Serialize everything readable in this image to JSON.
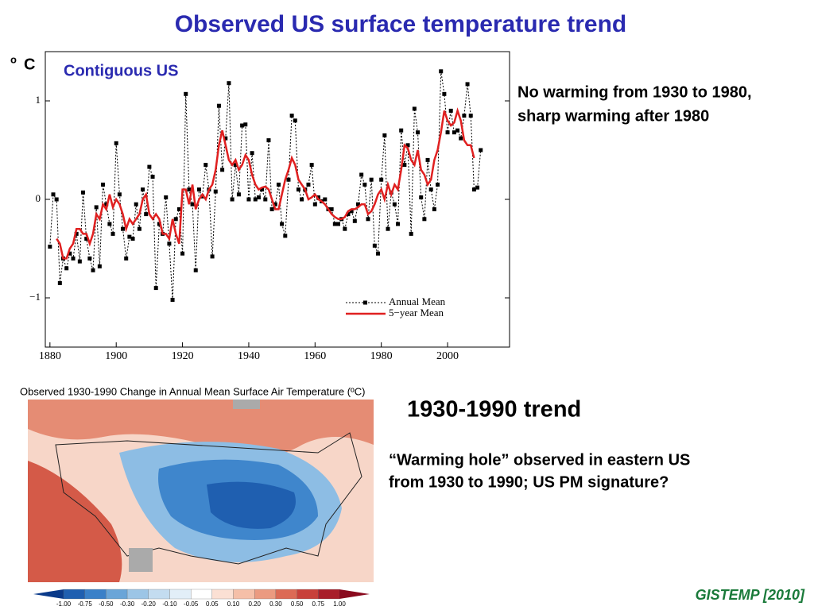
{
  "title": "Observed US surface temperature trend",
  "chart_data": {
    "type": "line",
    "ylabel_sup": "o",
    "ylabel": "C",
    "annotation": "Contiguous US",
    "x": [
      1880,
      1881,
      1882,
      1883,
      1884,
      1885,
      1886,
      1887,
      1888,
      1889,
      1890,
      1891,
      1892,
      1893,
      1894,
      1895,
      1896,
      1897,
      1898,
      1899,
      1900,
      1901,
      1902,
      1903,
      1904,
      1905,
      1906,
      1907,
      1908,
      1909,
      1910,
      1911,
      1912,
      1913,
      1914,
      1915,
      1916,
      1917,
      1918,
      1919,
      1920,
      1921,
      1922,
      1923,
      1924,
      1925,
      1926,
      1927,
      1928,
      1929,
      1930,
      1931,
      1932,
      1933,
      1934,
      1935,
      1936,
      1937,
      1938,
      1939,
      1940,
      1941,
      1942,
      1943,
      1944,
      1945,
      1946,
      1947,
      1948,
      1949,
      1950,
      1951,
      1952,
      1953,
      1954,
      1955,
      1956,
      1957,
      1958,
      1959,
      1960,
      1961,
      1962,
      1963,
      1964,
      1965,
      1966,
      1967,
      1968,
      1969,
      1970,
      1971,
      1972,
      1973,
      1974,
      1975,
      1976,
      1977,
      1978,
      1979,
      1980,
      1981,
      1982,
      1983,
      1984,
      1985,
      1986,
      1987,
      1988,
      1989,
      1990,
      1991,
      1992,
      1993,
      1994,
      1995,
      1996,
      1997,
      1998,
      1999,
      2000,
      2001,
      2002,
      2003,
      2004,
      2005,
      2006,
      2007,
      2008,
      2009,
      2010
    ],
    "series": [
      {
        "name": "Annual Mean",
        "color": "#000000",
        "values": [
          -0.48,
          0.05,
          0.0,
          -0.85,
          -0.6,
          -0.7,
          -0.55,
          -0.6,
          -0.35,
          -0.63,
          0.07,
          -0.4,
          -0.6,
          -0.72,
          -0.08,
          -0.68,
          0.15,
          -0.05,
          -0.25,
          -0.35,
          0.57,
          0.05,
          -0.3,
          -0.6,
          -0.38,
          -0.4,
          -0.05,
          -0.3,
          0.1,
          -0.15,
          0.33,
          0.23,
          -0.9,
          -0.25,
          -0.35,
          0.02,
          -0.45,
          -1.02,
          -0.2,
          -0.1,
          -0.55,
          1.07,
          0.1,
          -0.05,
          -0.72,
          0.1,
          0.03,
          0.35,
          0.1,
          -0.58,
          0.08,
          0.95,
          0.3,
          0.62,
          1.18,
          0.0,
          0.35,
          0.05,
          0.75,
          0.76,
          0.0,
          0.47,
          0.0,
          0.02,
          0.1,
          0.0,
          0.6,
          -0.1,
          -0.05,
          0.15,
          -0.25,
          -0.37,
          0.2,
          0.85,
          0.8,
          0.1,
          0.0,
          0.1,
          0.15,
          0.35,
          -0.05,
          0.02,
          -0.02,
          0.0,
          -0.1,
          -0.1,
          -0.25,
          -0.25,
          -0.2,
          -0.3,
          -0.15,
          -0.12,
          -0.22,
          -0.05,
          0.25,
          0.15,
          -0.2,
          0.2,
          -0.47,
          -0.55,
          0.2,
          0.65,
          -0.3,
          0.07,
          -0.05,
          -0.25,
          0.7,
          0.35,
          0.55,
          -0.35,
          0.92,
          0.68,
          0.02,
          -0.2,
          0.4,
          0.1,
          -0.1,
          0.15,
          1.3,
          1.07,
          0.68,
          0.9,
          0.68,
          0.7,
          0.62,
          0.85,
          1.17,
          0.85,
          0.1,
          0.12,
          0.5
        ]
      },
      {
        "name": "5−year Mean",
        "color": "#e02020",
        "values": [
          null,
          null,
          -0.4,
          -0.45,
          -0.6,
          -0.6,
          -0.5,
          -0.45,
          -0.3,
          -0.3,
          -0.35,
          -0.35,
          -0.45,
          -0.35,
          -0.15,
          -0.2,
          -0.05,
          -0.1,
          0.05,
          -0.08,
          0.0,
          -0.05,
          -0.15,
          -0.3,
          -0.2,
          -0.25,
          -0.2,
          -0.15,
          0.0,
          0.05,
          -0.15,
          -0.2,
          -0.15,
          -0.2,
          -0.35,
          -0.35,
          -0.4,
          -0.2,
          -0.35,
          -0.45,
          0.1,
          0.1,
          -0.05,
          0.15,
          -0.1,
          0.0,
          0.05,
          0.0,
          0.1,
          0.15,
          0.3,
          0.55,
          0.7,
          0.55,
          0.4,
          0.35,
          0.4,
          0.3,
          0.35,
          0.45,
          0.4,
          0.25,
          0.15,
          0.1,
          0.12,
          0.13,
          0.1,
          0.0,
          -0.1,
          -0.1,
          0.05,
          0.2,
          0.3,
          0.42,
          0.35,
          0.2,
          0.15,
          0.1,
          0.0,
          0.02,
          0.05,
          0.0,
          -0.02,
          -0.05,
          -0.1,
          -0.15,
          -0.18,
          -0.2,
          -0.2,
          -0.18,
          -0.12,
          -0.1,
          -0.1,
          -0.08,
          -0.05,
          -0.05,
          -0.15,
          -0.12,
          -0.05,
          0.05,
          0.1,
          0.0,
          0.15,
          0.05,
          0.15,
          0.1,
          0.3,
          0.55,
          0.52,
          0.4,
          0.35,
          0.5,
          0.3,
          0.25,
          0.15,
          0.2,
          0.4,
          0.5,
          0.68,
          0.9,
          0.8,
          0.75,
          0.78,
          0.9,
          0.8,
          0.6,
          0.55,
          0.55,
          0.42,
          null,
          null
        ]
      }
    ],
    "xlim": [
      1878.6,
      2018.7
    ],
    "xticks": [
      1880,
      1900,
      1920,
      1940,
      1960,
      1980,
      2000
    ],
    "ylim": [
      -1.5,
      1.5
    ],
    "yticks": [
      {
        "value": -1,
        "label": "−1"
      },
      0,
      1
    ],
    "legend": "lower right"
  },
  "notes": [
    {
      "lines": [
        "No warming from 1930 to 1980,",
        "sharp warming after 1980"
      ]
    },
    {
      "heading": "1930-1990 trend",
      "lines": [
        "“Warming hole” observed in eastern US",
        "from 1930 to 1990; US PM signature?"
      ]
    }
  ],
  "map": {
    "title": "Observed 1930-1990 Change in Annual Mean Surface Air Temperature (ºC)",
    "colorbar_labels": [
      "-1.00",
      "-0.75",
      "-0.50",
      "-0.30",
      "-0.20",
      "-0.10",
      "-0.05",
      "0.05",
      "0.10",
      "0.20",
      "0.30",
      "0.50",
      "0.75",
      "1.00"
    ],
    "colorbar_colors": [
      "#0a3a8a",
      "#1f5fb0",
      "#3a80c8",
      "#6aa5d8",
      "#9cc5e6",
      "#c3dcf0",
      "#e2eef8",
      "#ffffff",
      "#fbe0d4",
      "#f5bfa8",
      "#eb9a80",
      "#dc6a55",
      "#c8403a",
      "#a81e2a",
      "#8a0a1e"
    ]
  },
  "source": "GISTEMP [2010]"
}
